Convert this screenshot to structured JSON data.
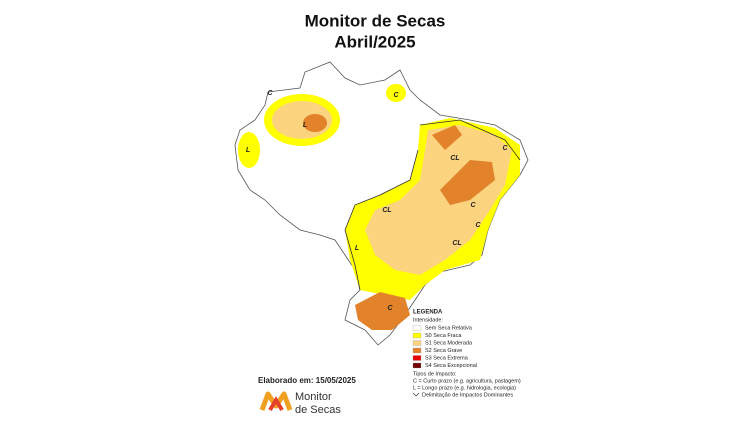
{
  "header": {
    "title": "Monitor de Secas",
    "subtitle": "Abril/2025"
  },
  "map": {
    "labels": [
      "C",
      "L",
      "C",
      "L",
      "CL",
      "C",
      "CL",
      "C",
      "CL",
      "C",
      "L",
      "C"
    ]
  },
  "legend": {
    "title": "LEGENDA",
    "intensity_title": "Intensidade:",
    "items": [
      {
        "label": "Sem Seca Relativa",
        "color": "#ffffff"
      },
      {
        "label": "S0 Seca Fraca",
        "color": "#ffff00"
      },
      {
        "label": "S1 Seca Moderada",
        "color": "#fcd37f"
      },
      {
        "label": "S2 Seca Grave",
        "color": "#e2822a"
      },
      {
        "label": "S3 Seca Extrema",
        "color": "#e60000"
      },
      {
        "label": "S4 Seca Excepcional",
        "color": "#730000"
      }
    ],
    "impact_title": "Tipos de Impacto:",
    "impacts": [
      "C = Curto prazo (e.g. agricultura, pastagem)",
      "L = Longo prazo (e.g. hidrologia, ecologia)"
    ],
    "delimitation": "Delimitação de Impactos Dominantes"
  },
  "footer": {
    "date": "Elaborado em: 15/05/2025",
    "logo_line1": "Monitor",
    "logo_line2": "de Secas"
  }
}
